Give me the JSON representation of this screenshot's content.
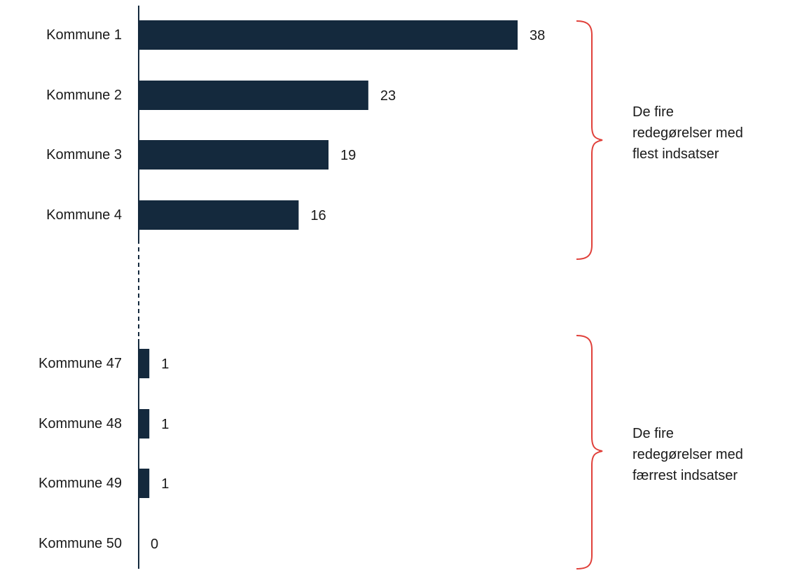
{
  "chart_data": {
    "type": "bar",
    "orientation": "horizontal",
    "categories": [
      "Kommune 1",
      "Kommune 2",
      "Kommune 3",
      "Kommune 4",
      "Kommune 47",
      "Kommune 48",
      "Kommune 49",
      "Kommune 50"
    ],
    "values": [
      38,
      23,
      19,
      16,
      1,
      1,
      1,
      0
    ],
    "value_labels": [
      "38",
      "23",
      "19",
      "16",
      "1",
      "1",
      "1",
      "0"
    ],
    "bar_color": "#14293d",
    "axis_break": "dashed",
    "grid": false,
    "legend": "none",
    "annotations": [
      {
        "lines": [
          "De fire",
          "redegørelser med",
          "flest indsatser"
        ],
        "bracket_color": "#e0403a"
      },
      {
        "lines": [
          "De fire",
          "redegørelser med",
          "færrest indsatser"
        ],
        "bracket_color": "#e0403a"
      }
    ]
  }
}
